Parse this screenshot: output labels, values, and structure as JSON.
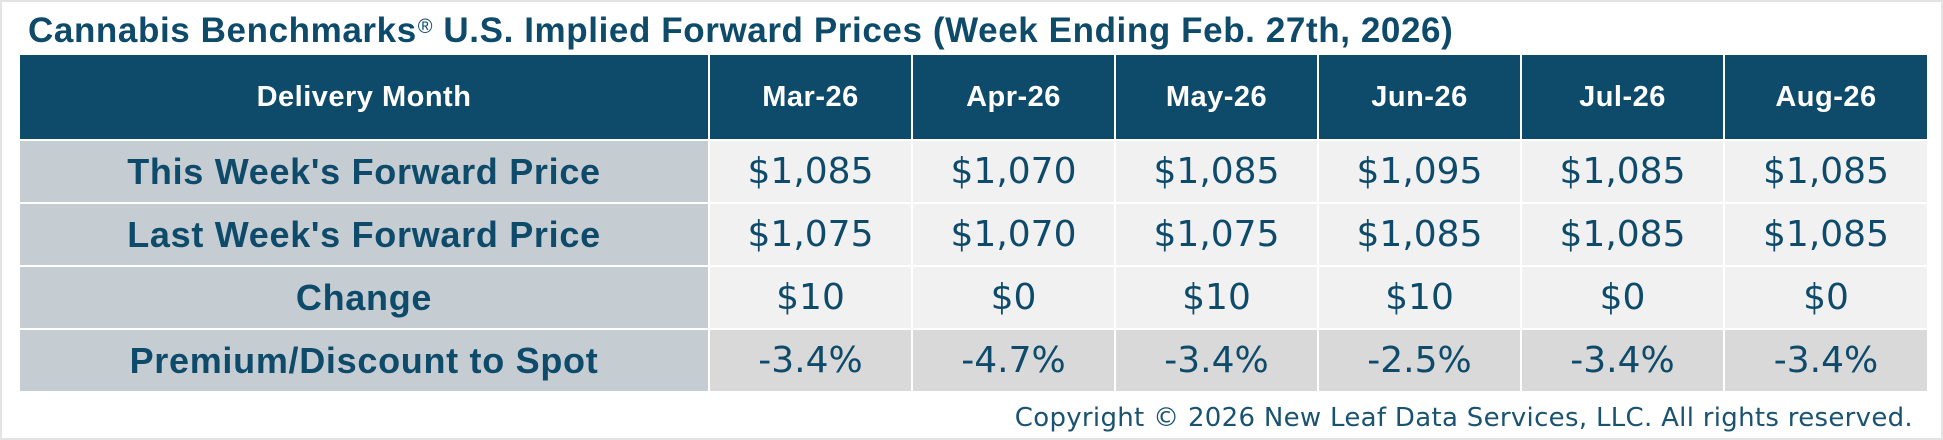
{
  "title": {
    "main": "Cannabis Benchmarks",
    "registered_mark": "®",
    "rest": " U.S. Implied Forward Prices (Week Ending Feb. 27th, 2026)"
  },
  "colors": {
    "header_bg": "#0e4a6a",
    "text": "#0e4a6a",
    "label_bg": "#c5cdd3",
    "cell_bg": "#f1f1f1",
    "premium_bg": "#d9d9d9"
  },
  "table": {
    "header_label": "Delivery Month",
    "months": [
      "Mar-26",
      "Apr-26",
      "May-26",
      "Jun-26",
      "Jul-26",
      "Aug-26"
    ],
    "rows": [
      {
        "label": "This Week's Forward Price",
        "values": [
          "$1,085",
          "$1,070",
          "$1,085",
          "$1,095",
          "$1,085",
          "$1,085"
        ]
      },
      {
        "label": "Last Week's Forward Price",
        "values": [
          "$1,075",
          "$1,070",
          "$1,075",
          "$1,085",
          "$1,085",
          "$1,085"
        ]
      },
      {
        "label": "Change",
        "values": [
          "$10",
          "$0",
          "$10",
          "$10",
          "$0",
          "$0"
        ]
      },
      {
        "label": "Premium/Discount to Spot",
        "values": [
          "-3.4%",
          "-4.7%",
          "-3.4%",
          "-2.5%",
          "-3.4%",
          "-3.4%"
        ]
      }
    ]
  },
  "footer": {
    "copyright": "Copyright © 2026 New Leaf Data Services, LLC. All rights reserved."
  }
}
